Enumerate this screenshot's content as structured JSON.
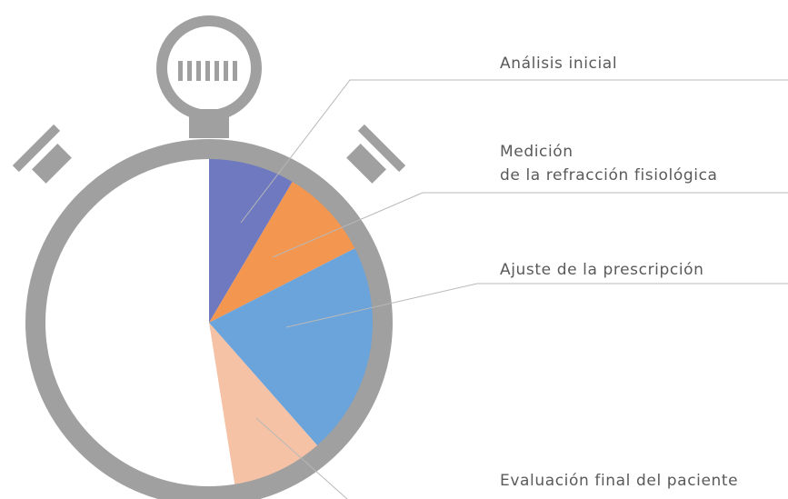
{
  "chart_data": {
    "type": "pie",
    "categories": [
      "Análisis inicial",
      "Medición\nde la refracción fisiológica",
      "Ajuste de la prescripción",
      "Evaluación final del paciente",
      null
    ],
    "values": [
      8.5,
      9,
      21,
      9,
      52.5
    ],
    "colors": [
      "#6e79c0",
      "#f3964f",
      "#6ba3db",
      "#f5c2a6",
      "#ffffff"
    ]
  }
}
